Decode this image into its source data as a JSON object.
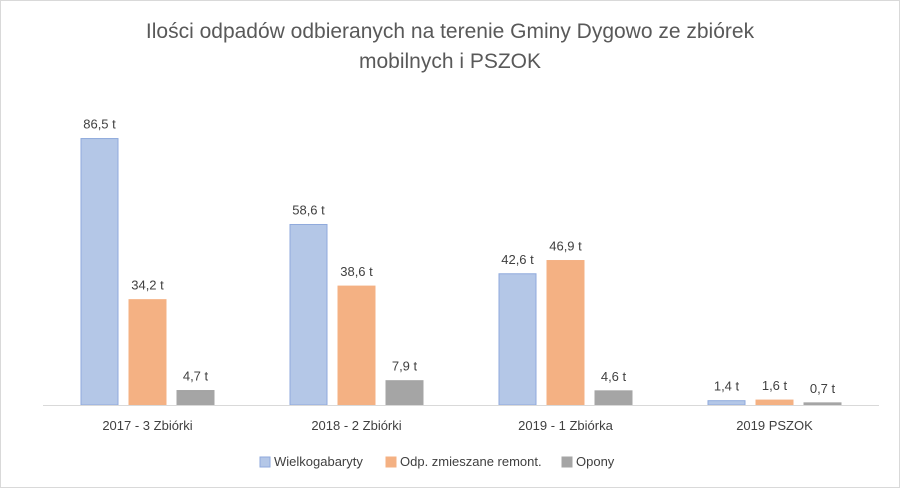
{
  "chart_data": {
    "type": "bar",
    "title_lines": [
      "Ilości odpadów odbieranych na terenie Gminy Dygowo ze zbiórek",
      "mobilnych i PSZOK"
    ],
    "categories": [
      "2017 - 3 Zbiórki",
      "2018 - 2 Zbiórki",
      "2019 - 1 Zbiórka",
      "2019 PSZOK"
    ],
    "series": [
      {
        "name": "Wielkogabaryty",
        "color": "#b4c7e7",
        "stroke": "#8faadc",
        "values": [
          86.5,
          58.6,
          42.6,
          1.4
        ],
        "labels": [
          "86,5 t",
          "58,6 t",
          "42,6 t",
          "1,4 t"
        ]
      },
      {
        "name": "Odp. zmieszane remont.",
        "color": "#f4b183",
        "stroke": "#f4b183",
        "values": [
          34.2,
          38.6,
          46.9,
          1.6
        ],
        "labels": [
          "34,2 t",
          "38,6 t",
          "46,9 t",
          "1,6 t"
        ]
      },
      {
        "name": "Opony",
        "color": "#a5a5a5",
        "stroke": "#a5a5a5",
        "values": [
          4.7,
          7.9,
          4.6,
          0.7
        ],
        "labels": [
          "4,7 t",
          "7,9 t",
          "4,6 t",
          "0,7 t"
        ]
      }
    ],
    "ylim": [
      0,
      87
    ],
    "grid": false,
    "legend_position": "bottom"
  }
}
